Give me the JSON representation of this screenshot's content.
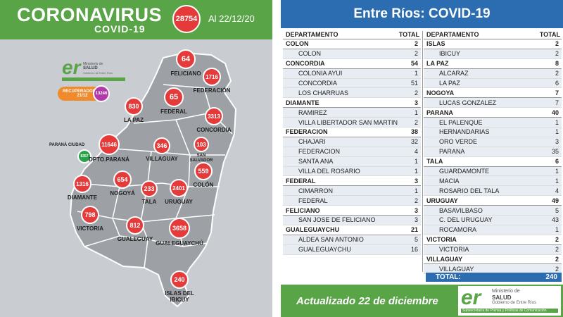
{
  "left": {
    "title": "CORONAVIRUS",
    "subtitle": "COVID-19",
    "total": "28754",
    "date": "Al 22/12/20",
    "logo": {
      "mark": "er",
      "line1": "Ministerio de",
      "line2": "SALUD",
      "line3": "Gobierno de Entre Ríos",
      "line4": "Subsecretaría de Prensa y Políticas de Comunicación"
    },
    "recovered": {
      "label": "RECUPERADOS AL 21/12",
      "value": "13246"
    },
    "parana_city": {
      "label": "PARANÁ CIUDAD",
      "value": "8357"
    },
    "departments": [
      {
        "name": "FELICIANO",
        "value": "64"
      },
      {
        "name": "FEDERACIÓN",
        "value": "1716"
      },
      {
        "name": "FEDERAL",
        "value": "65"
      },
      {
        "name": "LA PAZ",
        "value": "830"
      },
      {
        "name": "CONCORDIA",
        "value": "3313"
      },
      {
        "name": "DPTO.PARANÁ",
        "value": "11646"
      },
      {
        "name": "VILLAGUAY",
        "value": "346"
      },
      {
        "name": "SAN SALVADOR",
        "value": "103"
      },
      {
        "name": "COLÓN",
        "value": "559"
      },
      {
        "name": "DIAMANTE",
        "value": "1316"
      },
      {
        "name": "NOGOYÁ",
        "value": "654"
      },
      {
        "name": "TALA",
        "value": "233"
      },
      {
        "name": "URUGUAY",
        "value": "2401"
      },
      {
        "name": "VICTORIA",
        "value": "798"
      },
      {
        "name": "GUALEGUAY",
        "value": "812"
      },
      {
        "name": "GUALEGUAYCHÚ",
        "value": "3658"
      },
      {
        "name": "ISLAS DEL IBICUY",
        "value": "240"
      }
    ]
  },
  "right": {
    "title": "Entre Ríos: COVID-19",
    "col_header_dept": "DEPARTAMENTO",
    "col_header_total": "TOTAL",
    "left_rows": [
      {
        "name": "COLON",
        "value": "2",
        "type": "dep"
      },
      {
        "name": "COLON",
        "value": "2",
        "type": "loc"
      },
      {
        "name": "CONCORDIA",
        "value": "54",
        "type": "dep"
      },
      {
        "name": "COLONIA AYUI",
        "value": "1",
        "type": "loc"
      },
      {
        "name": "CONCORDIA",
        "value": "51",
        "type": "loc"
      },
      {
        "name": "LOS CHARRUAS",
        "value": "2",
        "type": "loc"
      },
      {
        "name": "DIAMANTE",
        "value": "3",
        "type": "dep"
      },
      {
        "name": "RAMIREZ",
        "value": "1",
        "type": "loc"
      },
      {
        "name": "VILLA LIBERTADOR SAN MARTIN",
        "value": "2",
        "type": "loc"
      },
      {
        "name": "FEDERACION",
        "value": "38",
        "type": "dep"
      },
      {
        "name": "CHAJARI",
        "value": "32",
        "type": "loc"
      },
      {
        "name": "FEDERACION",
        "value": "4",
        "type": "loc"
      },
      {
        "name": "SANTA ANA",
        "value": "1",
        "type": "loc"
      },
      {
        "name": "VILLA DEL ROSARIO",
        "value": "1",
        "type": "loc"
      },
      {
        "name": "FEDERAL",
        "value": "3",
        "type": "dep"
      },
      {
        "name": "CIMARRON",
        "value": "1",
        "type": "loc"
      },
      {
        "name": "FEDERAL",
        "value": "2",
        "type": "loc"
      },
      {
        "name": "FELICIANO",
        "value": "3",
        "type": "dep"
      },
      {
        "name": "SAN JOSE DE FELICIANO",
        "value": "3",
        "type": "loc"
      },
      {
        "name": "GUALEGUAYCHU",
        "value": "21",
        "type": "dep"
      },
      {
        "name": "ALDEA SAN ANTONIO",
        "value": "5",
        "type": "loc"
      },
      {
        "name": "GUALEGUAYCHU",
        "value": "16",
        "type": "loc"
      }
    ],
    "right_rows": [
      {
        "name": "ISLAS",
        "value": "2",
        "type": "dep"
      },
      {
        "name": "IBICUY",
        "value": "2",
        "type": "loc"
      },
      {
        "name": "LA PAZ",
        "value": "8",
        "type": "dep"
      },
      {
        "name": "ALCARAZ",
        "value": "2",
        "type": "loc"
      },
      {
        "name": "LA PAZ",
        "value": "6",
        "type": "loc"
      },
      {
        "name": "NOGOYA",
        "value": "7",
        "type": "dep"
      },
      {
        "name": "LUCAS GONZALEZ",
        "value": "7",
        "type": "loc"
      },
      {
        "name": "PARANA",
        "value": "40",
        "type": "dep"
      },
      {
        "name": "EL PALENQUE",
        "value": "1",
        "type": "loc"
      },
      {
        "name": "HERNANDARIAS",
        "value": "1",
        "type": "loc"
      },
      {
        "name": "ORO VERDE",
        "value": "3",
        "type": "loc"
      },
      {
        "name": "PARANA",
        "value": "35",
        "type": "loc"
      },
      {
        "name": "TALA",
        "value": "6",
        "type": "dep"
      },
      {
        "name": "GUARDAMONTE",
        "value": "1",
        "type": "loc"
      },
      {
        "name": "MACIA",
        "value": "1",
        "type": "loc"
      },
      {
        "name": "ROSARIO DEL TALA",
        "value": "4",
        "type": "loc"
      },
      {
        "name": "URUGUAY",
        "value": "49",
        "type": "dep"
      },
      {
        "name": "BASAVILBASO",
        "value": "5",
        "type": "loc"
      },
      {
        "name": "C. DEL URUGUAY",
        "value": "43",
        "type": "loc"
      },
      {
        "name": "ROCAMORA",
        "value": "1",
        "type": "loc"
      },
      {
        "name": "VICTORIA",
        "value": "2",
        "type": "dep"
      },
      {
        "name": "VICTORIA",
        "value": "2",
        "type": "loc"
      },
      {
        "name": "VILLAGUAY",
        "value": "2",
        "type": "dep"
      },
      {
        "name": "VILLAGUAY",
        "value": "2",
        "type": "loc"
      }
    ],
    "total_label": "TOTAL:",
    "total_value": "240",
    "footer_text": "Actualizado 22 de diciembre",
    "footer_logo": {
      "mark": "er",
      "line1": "Ministerio de",
      "line2": "SALUD",
      "line3": "Gobierno de Entre Ríos",
      "line4": "Subsecretaría de Prensa y Políticas de Comunicación"
    }
  },
  "colors": {
    "green": "#58a447",
    "blue": "#2b6db0",
    "red": "#e53a3a",
    "orange": "#f08a2a",
    "purple": "#b23aa8",
    "map_gray": "#c9ccd0"
  }
}
